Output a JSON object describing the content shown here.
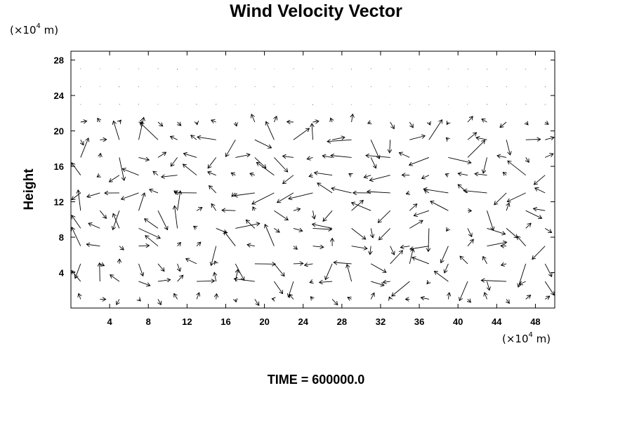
{
  "title": "Wind Velocity Vector",
  "y_unit": {
    "prefix": "(×10",
    "exp": "4",
    "suffix": " m)"
  },
  "x_unit": {
    "prefix": "(×10",
    "exp": "4",
    "suffix": " m)"
  },
  "ylabel": "Height",
  "footer": "TIME = 600000.0",
  "chart_data": {
    "type": "vector_field",
    "title": "Wind Velocity Vector",
    "xlabel": "",
    "ylabel": "Height",
    "x_unit": "×10^4 m",
    "y_unit": "×10^4 m",
    "xlim": [
      0,
      50
    ],
    "ylim": [
      0,
      29
    ],
    "x_ticks": [
      4,
      8,
      12,
      16,
      20,
      24,
      28,
      32,
      36,
      40,
      44,
      48
    ],
    "y_ticks": [
      4,
      8,
      12,
      16,
      20,
      24,
      28
    ],
    "grid": false,
    "time": "600000.0",
    "grid_spacing": {
      "dx": 2,
      "dy": 2
    },
    "vectors_description": "Arrows on a regular grid; near-zero vectors above height 20, strong mixed-direction vectors in the band from height ~2 to ~20."
  }
}
